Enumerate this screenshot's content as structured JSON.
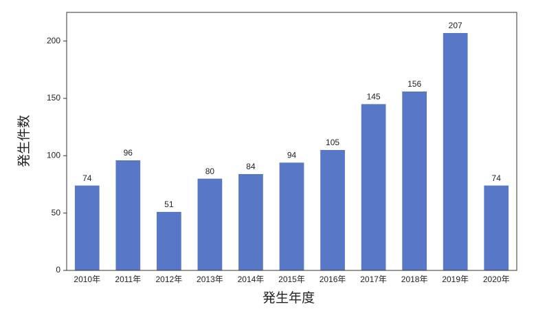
{
  "chart_data": {
    "type": "bar",
    "x_label": "発生年度",
    "y_label": "発生件数",
    "categories": [
      "2010年",
      "2011年",
      "2012年",
      "2013年",
      "2014年",
      "2015年",
      "2016年",
      "2017年",
      "2018年",
      "2019年",
      "2020年"
    ],
    "values": [
      74,
      96,
      51,
      80,
      84,
      94,
      105,
      145,
      156,
      207,
      74
    ],
    "color": "#5877c6",
    "ylim": [
      0,
      225
    ],
    "yticks": [
      0,
      50,
      100,
      150,
      200
    ],
    "grid": false
  }
}
